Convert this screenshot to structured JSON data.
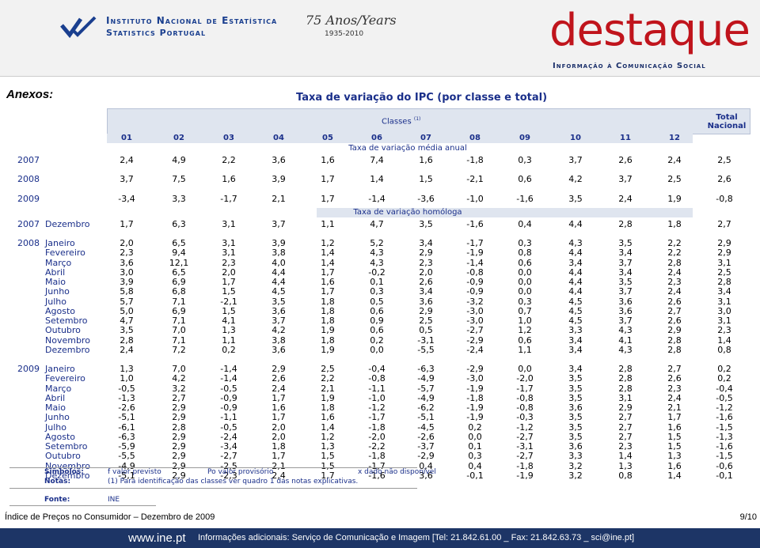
{
  "header": {
    "institute": "Instituto Nacional de Estatística",
    "institute_en": "Statistics Portugal",
    "anniversary": "75 Anos/Years",
    "anniversary_years": "1935-2010",
    "brand": "destaque",
    "brand_sub": "Informação à Comunicação Social"
  },
  "section_label": "Anexos:",
  "table": {
    "title": "Taxa de variação do IPC (por classe e total)",
    "classes_label": "Classes",
    "classes_note": "(1)",
    "total_label": "Total Nacional",
    "columns": [
      "01",
      "02",
      "03",
      "04",
      "05",
      "06",
      "07",
      "08",
      "09",
      "10",
      "11",
      "12"
    ],
    "sections": [
      {
        "title": "Taxa de variação média anual",
        "rows": [
          {
            "year": "2007",
            "values": [
              "2,4",
              "4,9",
              "2,2",
              "3,6",
              "1,6",
              "7,4",
              "1,6",
              "-1,8",
              "0,3",
              "3,7",
              "2,6",
              "2,4",
              "2,5"
            ]
          },
          {
            "year": "2008",
            "values": [
              "3,7",
              "7,5",
              "1,6",
              "3,9",
              "1,7",
              "1,4",
              "1,5",
              "-2,1",
              "0,6",
              "4,2",
              "3,7",
              "2,5",
              "2,6"
            ]
          },
          {
            "year": "2009",
            "values": [
              "-3,4",
              "3,3",
              "-1,7",
              "2,1",
              "1,7",
              "-1,4",
              "-3,6",
              "-1,0",
              "-1,6",
              "3,5",
              "2,4",
              "1,9",
              "-0,8"
            ]
          }
        ]
      },
      {
        "title": "Taxa de variação homóloga",
        "rows": [
          {
            "year": "2007",
            "month": "Dezembro",
            "values": [
              "1,7",
              "6,3",
              "3,1",
              "3,7",
              "1,1",
              "4,7",
              "3,5",
              "-1,6",
              "0,4",
              "4,4",
              "2,8",
              "1,8",
              "2,7"
            ]
          },
          {
            "year": "2008",
            "month": "Janeiro",
            "values": [
              "2,0",
              "6,5",
              "3,1",
              "3,9",
              "1,2",
              "5,2",
              "3,4",
              "-1,7",
              "0,3",
              "4,3",
              "3,5",
              "2,2",
              "2,9"
            ]
          },
          {
            "month": "Fevereiro",
            "values": [
              "2,3",
              "9,4",
              "3,1",
              "3,8",
              "1,4",
              "4,3",
              "2,9",
              "-1,9",
              "0,8",
              "4,4",
              "3,4",
              "2,2",
              "2,9"
            ]
          },
          {
            "month": "Março",
            "values": [
              "3,6",
              "12,1",
              "2,3",
              "4,0",
              "1,4",
              "4,3",
              "2,3",
              "-1,4",
              "0,6",
              "3,4",
              "3,7",
              "2,8",
              "3,1"
            ]
          },
          {
            "month": "Abril",
            "values": [
              "3,0",
              "6,5",
              "2,0",
              "4,4",
              "1,7",
              "-0,2",
              "2,0",
              "-0,8",
              "0,0",
              "4,4",
              "3,4",
              "2,4",
              "2,5"
            ]
          },
          {
            "month": "Maio",
            "values": [
              "3,9",
              "6,9",
              "1,7",
              "4,4",
              "1,6",
              "0,1",
              "2,6",
              "-0,9",
              "0,0",
              "4,4",
              "3,5",
              "2,3",
              "2,8"
            ]
          },
          {
            "month": "Junho",
            "values": [
              "5,8",
              "6,8",
              "1,5",
              "4,5",
              "1,7",
              "0,3",
              "3,4",
              "-0,9",
              "0,0",
              "4,4",
              "3,7",
              "2,4",
              "3,4"
            ]
          },
          {
            "month": "Julho",
            "values": [
              "5,7",
              "7,1",
              "-2,1",
              "3,5",
              "1,8",
              "0,5",
              "3,6",
              "-3,2",
              "0,3",
              "4,5",
              "3,6",
              "2,6",
              "3,1"
            ]
          },
          {
            "month": "Agosto",
            "values": [
              "5,0",
              "6,9",
              "1,5",
              "3,6",
              "1,8",
              "0,6",
              "2,9",
              "-3,0",
              "0,7",
              "4,5",
              "3,6",
              "2,7",
              "3,0"
            ]
          },
          {
            "month": "Setembro",
            "values": [
              "4,7",
              "7,1",
              "4,1",
              "3,7",
              "1,8",
              "0,9",
              "2,5",
              "-3,0",
              "1,0",
              "4,5",
              "3,7",
              "2,6",
              "3,1"
            ]
          },
          {
            "month": "Outubro",
            "values": [
              "3,5",
              "7,0",
              "1,3",
              "4,2",
              "1,9",
              "0,6",
              "0,5",
              "-2,7",
              "1,2",
              "3,3",
              "4,3",
              "2,9",
              "2,3"
            ]
          },
          {
            "month": "Novembro",
            "values": [
              "2,8",
              "7,1",
              "1,1",
              "3,8",
              "1,8",
              "0,2",
              "-3,1",
              "-2,9",
              "0,6",
              "3,4",
              "4,1",
              "2,8",
              "1,4"
            ]
          },
          {
            "month": "Dezembro",
            "values": [
              "2,4",
              "7,2",
              "0,2",
              "3,6",
              "1,9",
              "0,0",
              "-5,5",
              "-2,4",
              "1,1",
              "3,4",
              "4,3",
              "2,8",
              "0,8"
            ]
          },
          {
            "year": "2009",
            "month": "Janeiro",
            "values": [
              "1,3",
              "7,0",
              "-1,4",
              "2,9",
              "2,5",
              "-0,4",
              "-6,3",
              "-2,9",
              "0,0",
              "3,4",
              "2,8",
              "2,7",
              "0,2"
            ]
          },
          {
            "month": "Fevereiro",
            "values": [
              "1,0",
              "4,2",
              "-1,4",
              "2,6",
              "2,2",
              "-0,8",
              "-4,9",
              "-3,0",
              "-2,0",
              "3,5",
              "2,8",
              "2,6",
              "0,2"
            ]
          },
          {
            "month": "Março",
            "values": [
              "-0,5",
              "3,2",
              "-0,5",
              "2,4",
              "2,1",
              "-1,1",
              "-5,7",
              "-1,9",
              "-1,7",
              "3,5",
              "2,8",
              "2,3",
              "-0,4"
            ]
          },
          {
            "month": "Abril",
            "values": [
              "-1,3",
              "2,7",
              "-0,9",
              "1,7",
              "1,9",
              "-1,0",
              "-4,9",
              "-1,8",
              "-0,8",
              "3,5",
              "3,1",
              "2,4",
              "-0,5"
            ]
          },
          {
            "month": "Maio",
            "values": [
              "-2,6",
              "2,9",
              "-0,9",
              "1,6",
              "1,8",
              "-1,2",
              "-6,2",
              "-1,9",
              "-0,8",
              "3,6",
              "2,9",
              "2,1",
              "-1,2"
            ]
          },
          {
            "month": "Junho",
            "values": [
              "-5,1",
              "2,9",
              "-1,1",
              "1,7",
              "1,6",
              "-1,7",
              "-5,1",
              "-1,9",
              "-0,3",
              "3,5",
              "2,7",
              "1,7",
              "-1,6"
            ]
          },
          {
            "month": "Julho",
            "values": [
              "-6,1",
              "2,8",
              "-0,5",
              "2,0",
              "1,4",
              "-1,8",
              "-4,5",
              "0,2",
              "-1,2",
              "3,5",
              "2,7",
              "1,6",
              "-1,5"
            ]
          },
          {
            "month": "Agosto",
            "values": [
              "-6,3",
              "2,9",
              "-2,4",
              "2,0",
              "1,2",
              "-2,0",
              "-2,6",
              "0,0",
              "-2,7",
              "3,5",
              "2,7",
              "1,5",
              "-1,3"
            ]
          },
          {
            "month": "Setembro",
            "values": [
              "-5,9",
              "2,9",
              "-3,4",
              "1,8",
              "1,3",
              "-2,2",
              "-3,7",
              "0,1",
              "-3,1",
              "3,6",
              "2,3",
              "1,5",
              "-1,6"
            ]
          },
          {
            "month": "Outubro",
            "values": [
              "-5,5",
              "2,9",
              "-2,7",
              "1,7",
              "1,5",
              "-1,8",
              "-2,9",
              "0,3",
              "-2,7",
              "3,3",
              "1,4",
              "1,3",
              "-1,5"
            ]
          },
          {
            "month": "Novembro",
            "values": [
              "-4,9",
              "2,9",
              "-2,5",
              "2,1",
              "1,5",
              "-1,7",
              "0,4",
              "0,4",
              "-1,8",
              "3,2",
              "1,3",
              "1,6",
              "-0,6"
            ]
          },
          {
            "month": "Dezembro",
            "values": [
              "-5,1",
              "2,9",
              "-2,3",
              "2,4",
              "1,7",
              "-1,6",
              "3,6",
              "-0,1",
              "-1,9",
              "3,2",
              "0,8",
              "1,4",
              "-0,1"
            ]
          }
        ]
      }
    ]
  },
  "symbols": {
    "label": "Símbolos:",
    "items": [
      "f   valor previsto",
      "Po   valor provisório",
      "x   dado não disponível"
    ]
  },
  "notes": {
    "label": "Notas:",
    "text": "(1) Para identificação das classes ver quadro 1 das notas explicativas."
  },
  "source": {
    "label": "Fonte:",
    "text": "INE"
  },
  "footer": {
    "document": "Índice de Preços no Consumidor – Dezembro de 2009",
    "page": "9/10",
    "site": "www.ine.pt",
    "contact": "Informações adicionais: Serviço de Comunicação e Imagem [Tel: 21.842.61.00 _ Fax: 21.842.63.73 _ sci@ine.pt]"
  }
}
